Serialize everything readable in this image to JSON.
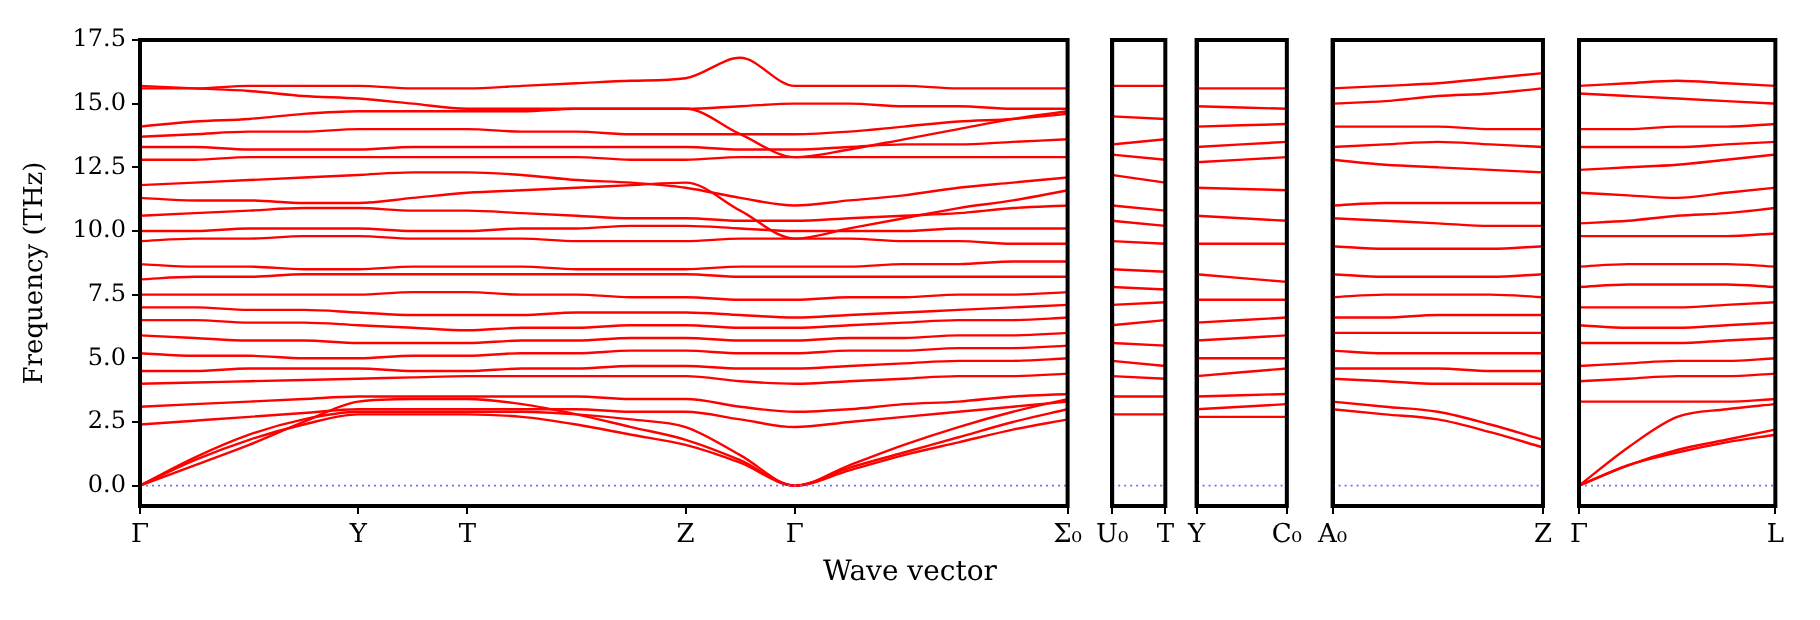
{
  "chart_data": [
    {
      "type": "line",
      "ylabel": "Frequency (THz)",
      "xlabel": "Wave vector",
      "ylim": [
        -0.8,
        17.5
      ],
      "categories": [
        "Γ",
        null,
        null,
        null,
        "Y",
        null,
        "T",
        null,
        null,
        null,
        "Z",
        null,
        "Γ",
        null,
        null,
        null,
        null,
        "Σ₀"
      ],
      "yticks": [
        {
          "value": 0,
          "label": "0.0"
        },
        2.5,
        {
          "value": 5,
          "label": "5.0"
        },
        7.5,
        {
          "value": 10,
          "label": "10.0"
        },
        12.5,
        {
          "value": 15,
          "label": "15.0"
        },
        17.5
      ],
      "ref_lines": [
        {
          "axis": "y",
          "value": 0,
          "color": "#6f6fff",
          "line_style": "dotted"
        }
      ],
      "series": [
        {
          "color": "#ff0000",
          "values": [
            0,
            1.0,
            1.8,
            2.4,
            2.8,
            2.8,
            2.8,
            2.7,
            2.4,
            2.0,
            1.6,
            0.9,
            0,
            0.6,
            1.2,
            1.7,
            2.2,
            2.6
          ]
        },
        {
          "color": "#ff0000",
          "values": [
            0,
            1.1,
            2.0,
            2.6,
            2.9,
            2.9,
            2.9,
            2.9,
            2.8,
            2.6,
            2.3,
            1.2,
            0,
            0.7,
            1.3,
            1.9,
            2.5,
            3.0
          ]
        },
        {
          "color": "#ff0000",
          "values": [
            0,
            0.8,
            1.6,
            2.5,
            3.3,
            3.4,
            3.4,
            3.2,
            2.8,
            2.3,
            1.8,
            1.0,
            0,
            0.8,
            1.6,
            2.3,
            2.9,
            3.4
          ]
        },
        {
          "color": "#ff0000",
          "values": [
            2.4,
            2.55,
            2.7,
            2.85,
            3.0,
            3.0,
            3.0,
            3.0,
            3.0,
            2.9,
            2.9,
            2.6,
            2.3,
            2.5,
            2.7,
            2.9,
            3.1,
            3.3
          ]
        },
        {
          "color": "#ff0000",
          "values": [
            3.1,
            3.2,
            3.3,
            3.4,
            3.5,
            3.5,
            3.5,
            3.5,
            3.5,
            3.4,
            3.4,
            3.1,
            2.9,
            3.0,
            3.2,
            3.3,
            3.5,
            3.6
          ]
        },
        {
          "color": "#ff0000",
          "values": [
            4.0,
            4.05,
            4.1,
            4.15,
            4.2,
            4.25,
            4.3,
            4.3,
            4.3,
            4.3,
            4.3,
            4.1,
            4.0,
            4.1,
            4.2,
            4.3,
            4.3,
            4.4
          ]
        },
        {
          "color": "#ff0000",
          "values": [
            4.5,
            4.5,
            4.6,
            4.6,
            4.6,
            4.5,
            4.5,
            4.6,
            4.6,
            4.7,
            4.7,
            4.6,
            4.6,
            4.7,
            4.8,
            4.9,
            4.9,
            5.0
          ]
        },
        {
          "color": "#ff0000",
          "values": [
            5.2,
            5.1,
            5.1,
            5.0,
            5.0,
            5.1,
            5.1,
            5.2,
            5.2,
            5.3,
            5.3,
            5.2,
            5.2,
            5.3,
            5.3,
            5.4,
            5.4,
            5.5
          ]
        },
        {
          "color": "#ff0000",
          "values": [
            5.9,
            5.8,
            5.7,
            5.7,
            5.6,
            5.6,
            5.6,
            5.7,
            5.7,
            5.8,
            5.8,
            5.7,
            5.7,
            5.8,
            5.8,
            5.9,
            5.9,
            6.0
          ]
        },
        {
          "color": "#ff0000",
          "values": [
            6.5,
            6.5,
            6.4,
            6.4,
            6.3,
            6.2,
            6.1,
            6.2,
            6.2,
            6.3,
            6.3,
            6.2,
            6.2,
            6.3,
            6.4,
            6.5,
            6.5,
            6.6
          ]
        },
        {
          "color": "#ff0000",
          "values": [
            7.0,
            7.0,
            6.9,
            6.9,
            6.8,
            6.7,
            6.7,
            6.7,
            6.8,
            6.8,
            6.8,
            6.7,
            6.6,
            6.7,
            6.8,
            6.9,
            7.0,
            7.1
          ]
        },
        {
          "color": "#ff0000",
          "values": [
            7.5,
            7.5,
            7.5,
            7.5,
            7.5,
            7.6,
            7.6,
            7.5,
            7.5,
            7.4,
            7.4,
            7.3,
            7.3,
            7.4,
            7.4,
            7.5,
            7.5,
            7.6
          ]
        },
        {
          "color": "#ff0000",
          "values": [
            8.1,
            8.2,
            8.2,
            8.3,
            8.3,
            8.3,
            8.3,
            8.3,
            8.3,
            8.3,
            8.3,
            8.2,
            8.2,
            8.2,
            8.2,
            8.2,
            8.2,
            8.2
          ]
        },
        {
          "color": "#ff0000",
          "values": [
            8.7,
            8.6,
            8.6,
            8.5,
            8.5,
            8.6,
            8.6,
            8.6,
            8.5,
            8.5,
            8.5,
            8.6,
            8.6,
            8.6,
            8.7,
            8.7,
            8.8,
            8.8
          ]
        },
        {
          "color": "#ff0000",
          "values": [
            9.6,
            9.7,
            9.7,
            9.8,
            9.8,
            9.7,
            9.7,
            9.7,
            9.6,
            9.6,
            9.6,
            9.7,
            9.7,
            9.7,
            9.6,
            9.6,
            9.5,
            9.5
          ]
        },
        {
          "color": "#ff0000",
          "values": [
            10.0,
            10.0,
            10.1,
            10.1,
            10.1,
            10.0,
            10.0,
            10.1,
            10.1,
            10.2,
            10.2,
            10.1,
            10.0,
            10.0,
            10.0,
            10.1,
            10.1,
            10.1
          ]
        },
        {
          "color": "#ff0000",
          "values": [
            10.6,
            10.7,
            10.8,
            10.9,
            10.9,
            10.8,
            10.8,
            10.7,
            10.6,
            10.5,
            10.5,
            10.4,
            10.4,
            10.5,
            10.6,
            10.7,
            10.9,
            11.0
          ]
        },
        {
          "color": "#ff0000",
          "values": [
            11.3,
            11.2,
            11.2,
            11.1,
            11.1,
            11.3,
            11.5,
            11.6,
            11.7,
            11.8,
            11.9,
            10.8,
            9.7,
            10.1,
            10.5,
            10.9,
            11.2,
            11.6
          ]
        },
        {
          "color": "#ff0000",
          "values": [
            11.8,
            11.9,
            12.0,
            12.1,
            12.2,
            12.3,
            12.3,
            12.2,
            12.0,
            11.9,
            11.7,
            11.3,
            11.0,
            11.2,
            11.4,
            11.7,
            11.9,
            12.1
          ]
        },
        {
          "color": "#ff0000",
          "values": [
            12.8,
            12.8,
            12.9,
            12.9,
            12.9,
            12.9,
            12.9,
            12.9,
            12.9,
            12.8,
            12.8,
            12.9,
            12.9,
            12.9,
            12.9,
            12.9,
            12.9,
            12.9
          ]
        },
        {
          "color": "#ff0000",
          "values": [
            13.3,
            13.3,
            13.2,
            13.2,
            13.2,
            13.3,
            13.3,
            13.3,
            13.3,
            13.3,
            13.3,
            13.2,
            13.2,
            13.3,
            13.4,
            13.4,
            13.5,
            13.6
          ]
        },
        {
          "color": "#ff0000",
          "values": [
            13.7,
            13.8,
            13.9,
            13.9,
            14.0,
            14.0,
            14.0,
            13.9,
            13.9,
            13.8,
            13.8,
            13.8,
            13.8,
            13.9,
            14.1,
            14.3,
            14.4,
            14.6
          ]
        },
        {
          "color": "#ff0000",
          "values": [
            14.1,
            14.3,
            14.4,
            14.6,
            14.7,
            14.7,
            14.7,
            14.7,
            14.8,
            14.8,
            14.8,
            13.8,
            12.9,
            13.2,
            13.6,
            14.0,
            14.4,
            14.7
          ]
        },
        {
          "color": "#ff0000",
          "values": [
            15.6,
            15.6,
            15.7,
            15.7,
            15.7,
            15.6,
            15.6,
            15.7,
            15.8,
            15.9,
            16.0,
            16.8,
            15.7,
            15.7,
            15.7,
            15.6,
            15.6,
            15.6
          ]
        },
        {
          "color": "#ff0000",
          "values": [
            15.7,
            15.6,
            15.5,
            15.3,
            15.2,
            15.0,
            14.8,
            14.8,
            14.8,
            14.8,
            14.8,
            14.9,
            15.0,
            15.0,
            14.9,
            14.9,
            14.8,
            14.8
          ]
        }
      ]
    },
    {
      "type": "line",
      "tick_labels": "x",
      "ylim": [
        -0.8,
        17.5
      ],
      "categories": [
        "U₀",
        "T"
      ],
      "yticks": [
        {
          "value": 0,
          "label": null
        },
        {
          "value": 2.5,
          "label": null
        },
        {
          "value": 5,
          "label": null
        },
        {
          "value": 7.5,
          "label": null
        },
        {
          "value": 10,
          "label": null
        },
        {
          "value": 12.5,
          "label": null
        },
        {
          "value": 15,
          "label": null
        },
        {
          "value": 17.5,
          "label": null
        }
      ],
      "ref_lines": [
        {
          "axis": "y",
          "value": 0,
          "color": "#6f6fff",
          "line_style": "dotted"
        }
      ],
      "series": [
        {
          "color": "#ff0000",
          "values": [
            2.8,
            2.8
          ]
        },
        {
          "color": "#ff0000",
          "values": [
            3.5,
            3.5
          ]
        },
        {
          "color": "#ff0000",
          "values": [
            4.3,
            4.2
          ]
        },
        {
          "color": "#ff0000",
          "values": [
            4.9,
            4.7
          ]
        },
        {
          "color": "#ff0000",
          "values": [
            5.6,
            5.5
          ]
        },
        {
          "color": "#ff0000",
          "values": [
            6.3,
            6.5
          ]
        },
        {
          "color": "#ff0000",
          "values": [
            7.1,
            7.2
          ]
        },
        {
          "color": "#ff0000",
          "values": [
            7.8,
            7.7
          ]
        },
        {
          "color": "#ff0000",
          "values": [
            8.5,
            8.4
          ]
        },
        {
          "color": "#ff0000",
          "values": [
            9.6,
            9.5
          ]
        },
        {
          "color": "#ff0000",
          "values": [
            10.4,
            10.2
          ]
        },
        {
          "color": "#ff0000",
          "values": [
            11.0,
            10.8
          ]
        },
        {
          "color": "#ff0000",
          "values": [
            12.2,
            11.9
          ]
        },
        {
          "color": "#ff0000",
          "values": [
            13.0,
            12.8
          ]
        },
        {
          "color": "#ff0000",
          "values": [
            13.4,
            13.6
          ]
        },
        {
          "color": "#ff0000",
          "values": [
            14.5,
            14.4
          ]
        },
        {
          "color": "#ff0000",
          "values": [
            15.7,
            15.7
          ]
        }
      ]
    },
    {
      "type": "line",
      "tick_labels": "x",
      "ylim": [
        -0.8,
        17.5
      ],
      "categories": [
        "Y",
        "C₀"
      ],
      "yticks": [
        {
          "value": 0,
          "label": null
        },
        {
          "value": 2.5,
          "label": null
        },
        {
          "value": 5,
          "label": null
        },
        {
          "value": 7.5,
          "label": null
        },
        {
          "value": 10,
          "label": null
        },
        {
          "value": 12.5,
          "label": null
        },
        {
          "value": 15,
          "label": null
        },
        {
          "value": 17.5,
          "label": null
        }
      ],
      "ref_lines": [
        {
          "axis": "y",
          "value": 0,
          "color": "#6f6fff",
          "line_style": "dotted"
        }
      ],
      "series": [
        {
          "color": "#ff0000",
          "values": [
            2.7,
            2.7
          ]
        },
        {
          "color": "#ff0000",
          "values": [
            3.0,
            3.2
          ]
        },
        {
          "color": "#ff0000",
          "values": [
            3.5,
            3.6
          ]
        },
        {
          "color": "#ff0000",
          "values": [
            4.3,
            4.6
          ]
        },
        {
          "color": "#ff0000",
          "values": [
            5.0,
            5.0
          ]
        },
        {
          "color": "#ff0000",
          "values": [
            5.7,
            5.9
          ]
        },
        {
          "color": "#ff0000",
          "values": [
            6.4,
            6.6
          ]
        },
        {
          "color": "#ff0000",
          "values": [
            7.3,
            7.3
          ]
        },
        {
          "color": "#ff0000",
          "values": [
            8.3,
            8.0
          ]
        },
        {
          "color": "#ff0000",
          "values": [
            9.5,
            9.5
          ]
        },
        {
          "color": "#ff0000",
          "values": [
            10.6,
            10.4
          ]
        },
        {
          "color": "#ff0000",
          "values": [
            11.7,
            11.6
          ]
        },
        {
          "color": "#ff0000",
          "values": [
            12.7,
            12.9
          ]
        },
        {
          "color": "#ff0000",
          "values": [
            13.3,
            13.5
          ]
        },
        {
          "color": "#ff0000",
          "values": [
            14.1,
            14.2
          ]
        },
        {
          "color": "#ff0000",
          "values": [
            14.9,
            14.8
          ]
        },
        {
          "color": "#ff0000",
          "values": [
            15.6,
            15.6
          ]
        }
      ]
    },
    {
      "type": "line",
      "tick_labels": "x",
      "ylim": [
        -0.8,
        17.5
      ],
      "categories": [
        "A₀",
        null,
        null,
        null,
        "Z"
      ],
      "yticks": [
        {
          "value": 0,
          "label": null
        },
        {
          "value": 2.5,
          "label": null
        },
        {
          "value": 5,
          "label": null
        },
        {
          "value": 7.5,
          "label": null
        },
        {
          "value": 10,
          "label": null
        },
        {
          "value": 12.5,
          "label": null
        },
        {
          "value": 15,
          "label": null
        },
        {
          "value": 17.5,
          "label": null
        }
      ],
      "ref_lines": [
        {
          "axis": "y",
          "value": 0,
          "color": "#6f6fff",
          "line_style": "dotted"
        }
      ],
      "series": [
        {
          "color": "#ff0000",
          "values": [
            3.0,
            2.8,
            2.6,
            2.1,
            1.5
          ]
        },
        {
          "color": "#ff0000",
          "values": [
            3.3,
            3.1,
            2.9,
            2.4,
            1.8
          ]
        },
        {
          "color": "#ff0000",
          "values": [
            4.2,
            4.1,
            4.0,
            4.0,
            4.0
          ]
        },
        {
          "color": "#ff0000",
          "values": [
            4.6,
            4.6,
            4.6,
            4.5,
            4.5
          ]
        },
        {
          "color": "#ff0000",
          "values": [
            5.3,
            5.2,
            5.2,
            5.2,
            5.2
          ]
        },
        {
          "color": "#ff0000",
          "values": [
            6.0,
            6.0,
            6.0,
            6.0,
            6.0
          ]
        },
        {
          "color": "#ff0000",
          "values": [
            6.6,
            6.6,
            6.7,
            6.7,
            6.7
          ]
        },
        {
          "color": "#ff0000",
          "values": [
            7.4,
            7.5,
            7.5,
            7.5,
            7.4
          ]
        },
        {
          "color": "#ff0000",
          "values": [
            8.3,
            8.2,
            8.2,
            8.2,
            8.3
          ]
        },
        {
          "color": "#ff0000",
          "values": [
            9.4,
            9.3,
            9.3,
            9.3,
            9.4
          ]
        },
        {
          "color": "#ff0000",
          "values": [
            10.5,
            10.4,
            10.3,
            10.2,
            10.2
          ]
        },
        {
          "color": "#ff0000",
          "values": [
            11.0,
            11.1,
            11.1,
            11.1,
            11.1
          ]
        },
        {
          "color": "#ff0000",
          "values": [
            12.8,
            12.6,
            12.5,
            12.4,
            12.3
          ]
        },
        {
          "color": "#ff0000",
          "values": [
            13.3,
            13.4,
            13.5,
            13.4,
            13.3
          ]
        },
        {
          "color": "#ff0000",
          "values": [
            14.1,
            14.1,
            14.1,
            14.0,
            14.0
          ]
        },
        {
          "color": "#ff0000",
          "values": [
            15.0,
            15.1,
            15.3,
            15.4,
            15.6
          ]
        },
        {
          "color": "#ff0000",
          "values": [
            15.6,
            15.7,
            15.8,
            16.0,
            16.2
          ]
        }
      ]
    },
    {
      "type": "line",
      "tick_labels": "x",
      "ylim": [
        -0.8,
        17.5
      ],
      "categories": [
        "Γ",
        null,
        null,
        null,
        "L"
      ],
      "yticks": [
        {
          "value": 0,
          "label": null
        },
        {
          "value": 2.5,
          "label": null
        },
        {
          "value": 5,
          "label": null
        },
        {
          "value": 7.5,
          "label": null
        },
        {
          "value": 10,
          "label": null
        },
        {
          "value": 12.5,
          "label": null
        },
        {
          "value": 15,
          "label": null
        },
        {
          "value": 17.5,
          "label": null
        }
      ],
      "ref_lines": [
        {
          "axis": "y",
          "value": 0,
          "color": "#6f6fff",
          "line_style": "dotted"
        }
      ],
      "series": [
        {
          "color": "#ff0000",
          "values": [
            0,
            0.8,
            1.3,
            1.7,
            2.0
          ]
        },
        {
          "color": "#ff0000",
          "values": [
            0,
            0.8,
            1.4,
            1.8,
            2.2
          ]
        },
        {
          "color": "#ff0000",
          "values": [
            0,
            1.5,
            2.7,
            3.0,
            3.2
          ]
        },
        {
          "color": "#ff0000",
          "values": [
            3.3,
            3.3,
            3.3,
            3.3,
            3.4
          ]
        },
        {
          "color": "#ff0000",
          "values": [
            4.1,
            4.2,
            4.3,
            4.3,
            4.4
          ]
        },
        {
          "color": "#ff0000",
          "values": [
            4.7,
            4.8,
            4.9,
            4.9,
            5.0
          ]
        },
        {
          "color": "#ff0000",
          "values": [
            5.6,
            5.6,
            5.6,
            5.7,
            5.8
          ]
        },
        {
          "color": "#ff0000",
          "values": [
            6.3,
            6.2,
            6.2,
            6.3,
            6.4
          ]
        },
        {
          "color": "#ff0000",
          "values": [
            7.0,
            7.0,
            7.0,
            7.1,
            7.2
          ]
        },
        {
          "color": "#ff0000",
          "values": [
            7.8,
            7.9,
            7.9,
            7.9,
            7.8
          ]
        },
        {
          "color": "#ff0000",
          "values": [
            8.6,
            8.7,
            8.7,
            8.7,
            8.6
          ]
        },
        {
          "color": "#ff0000",
          "values": [
            9.8,
            9.8,
            9.8,
            9.8,
            9.9
          ]
        },
        {
          "color": "#ff0000",
          "values": [
            10.3,
            10.4,
            10.6,
            10.7,
            10.9
          ]
        },
        {
          "color": "#ff0000",
          "values": [
            11.5,
            11.4,
            11.3,
            11.5,
            11.7
          ]
        },
        {
          "color": "#ff0000",
          "values": [
            12.4,
            12.5,
            12.6,
            12.8,
            13.0
          ]
        },
        {
          "color": "#ff0000",
          "values": [
            13.3,
            13.3,
            13.3,
            13.4,
            13.5
          ]
        },
        {
          "color": "#ff0000",
          "values": [
            14.0,
            14.0,
            14.1,
            14.1,
            14.2
          ]
        },
        {
          "color": "#ff0000",
          "values": [
            15.7,
            15.8,
            15.9,
            15.8,
            15.7
          ]
        },
        {
          "color": "#ff0000",
          "values": [
            15.4,
            15.3,
            15.2,
            15.1,
            15.0
          ]
        }
      ]
    }
  ]
}
